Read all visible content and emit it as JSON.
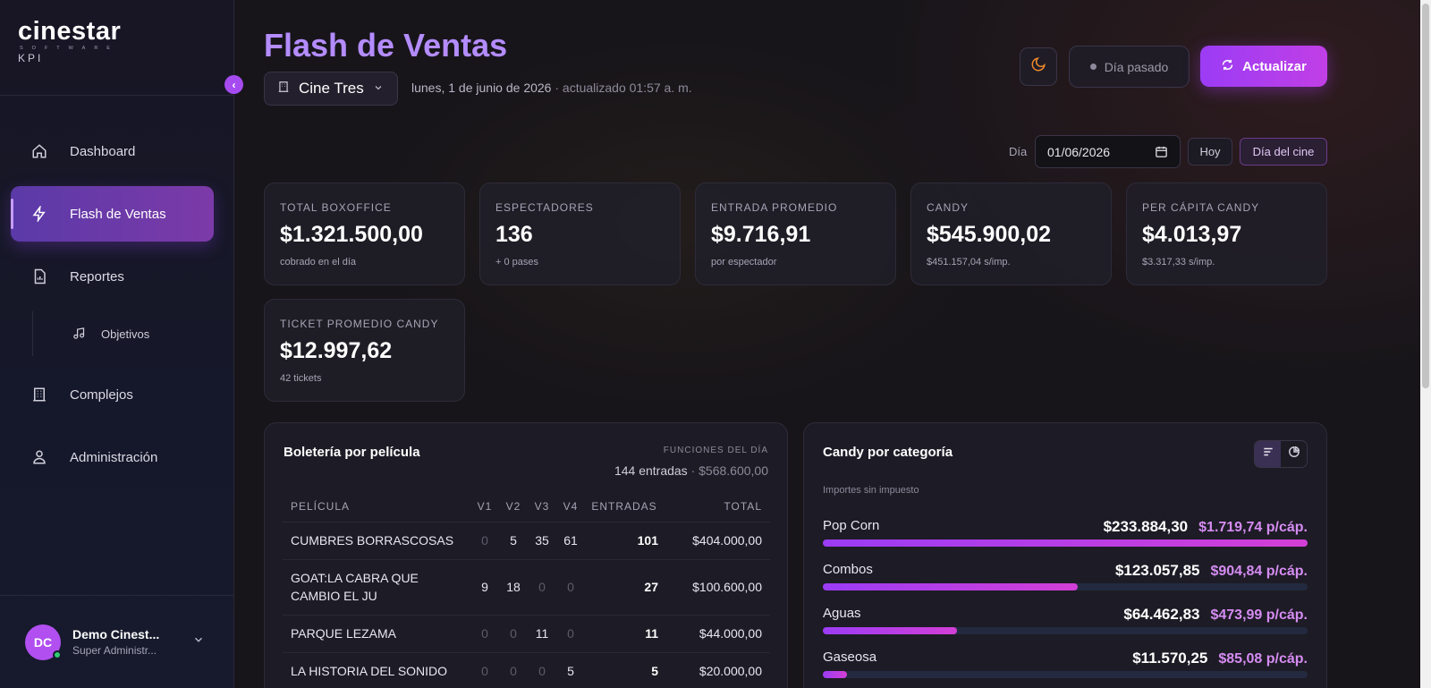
{
  "brand": {
    "name": "cinestar",
    "software": "SOFTWARE",
    "product": "KPI"
  },
  "sidebar": {
    "collapse_glyph": "‹",
    "items": [
      {
        "label": "Dashboard",
        "icon": "home-icon"
      },
      {
        "label": "Flash de Ventas",
        "icon": "bolt-icon",
        "active": true
      },
      {
        "label": "Reportes",
        "icon": "report-icon"
      },
      {
        "label": "Objetivos",
        "icon": "music-note-icon",
        "sub": true
      },
      {
        "label": "Complejos",
        "icon": "building-icon"
      },
      {
        "label": "Administración",
        "icon": "users-icon"
      }
    ],
    "user": {
      "initials": "DC",
      "name": "Demo Cinest...",
      "role": "Super Administr..."
    }
  },
  "header": {
    "title": "Flash de Ventas",
    "cinema": "Cine Tres",
    "date_text": "lunes, 1 de junio de 2026",
    "updated_text": " · actualizado 01:57 a. m.",
    "dia_pasado": "Día pasado",
    "refresh": "Actualizar"
  },
  "filters": {
    "day_label": "Día",
    "date_value": "01/06/2026",
    "hoy": "Hoy",
    "dia_cine": "Día del cine"
  },
  "kpis": [
    {
      "label": "TOTAL BOXOFFICE",
      "value": "$1.321.500,00",
      "sub": "cobrado en el día"
    },
    {
      "label": "ESPECTADORES",
      "value": "136",
      "sub": "+ 0 pases"
    },
    {
      "label": "ENTRADA PROMEDIO",
      "value": "$9.716,91",
      "sub": "por espectador"
    },
    {
      "label": "CANDY",
      "value": "$545.900,02",
      "sub": "$451.157,04 s/imp."
    },
    {
      "label": "PER CÁPITA CANDY",
      "value": "$4.013,97",
      "sub": "$3.317,33 s/imp."
    },
    {
      "label": "TICKET PROMEDIO CANDY",
      "value": "$12.997,62",
      "sub": "42 tickets"
    }
  ],
  "boleteria": {
    "title": "Boletería por película",
    "caption": "FUNCIONES DEL DÍA",
    "summary_entradas": "144 entradas",
    "summary_sep": " · ",
    "summary_total": "$568.600,00",
    "columns": [
      "PELÍCULA",
      "V1",
      "V2",
      "V3",
      "V4",
      "ENTRADAS",
      "TOTAL"
    ],
    "rows": [
      {
        "pelicula": "CUMBRES BORRASCOSAS",
        "v1": "0",
        "v2": "5",
        "v3": "35",
        "v4": "61",
        "entradas": "101",
        "total": "$404.000,00"
      },
      {
        "pelicula": "GOAT:LA CABRA QUE CAMBIO EL JU",
        "v1": "9",
        "v2": "18",
        "v3": "0",
        "v4": "0",
        "entradas": "27",
        "total": "$100.600,00"
      },
      {
        "pelicula": "PARQUE LEZAMA",
        "v1": "0",
        "v2": "0",
        "v3": "11",
        "v4": "0",
        "entradas": "11",
        "total": "$44.000,00"
      },
      {
        "pelicula": "LA HISTORIA DEL SONIDO",
        "v1": "0",
        "v2": "0",
        "v3": "0",
        "v4": "5",
        "entradas": "5",
        "total": "$20.000,00"
      }
    ]
  },
  "candy": {
    "title": "Candy por categoría",
    "note": "Importes sin impuesto",
    "categories": [
      {
        "name": "Pop Corn",
        "amount": "$233.884,30",
        "per_capita": "$1.719,74 p/cáp.",
        "share": 1.0
      },
      {
        "name": "Combos",
        "amount": "$123.057,85",
        "per_capita": "$904,84 p/cáp.",
        "share": 0.526
      },
      {
        "name": "Aguas",
        "amount": "$64.462,83",
        "per_capita": "$473,99 p/cáp.",
        "share": 0.276
      },
      {
        "name": "Gaseosa",
        "amount": "$11.570,25",
        "per_capita": "$85,08 p/cáp.",
        "share": 0.049
      }
    ]
  },
  "colors": {
    "accent": "#b48cff",
    "button": "#9b3cf5",
    "per_capita": "#d58cf2"
  }
}
